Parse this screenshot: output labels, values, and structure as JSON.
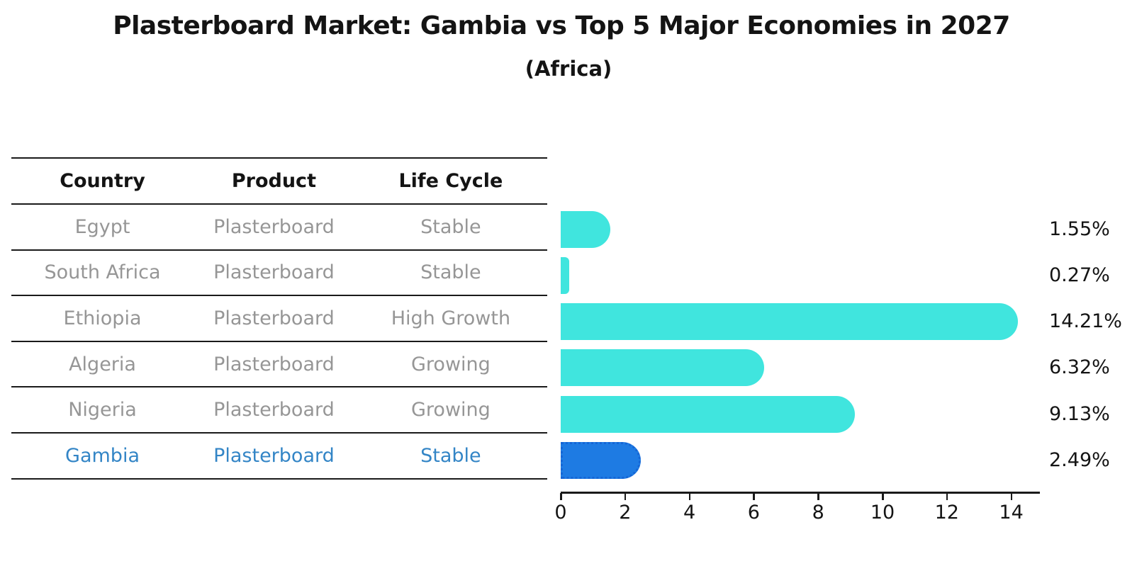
{
  "title": "Plasterboard Market: Gambia vs Top 5 Major Economies in 2027",
  "subtitle": "(Africa)",
  "table": {
    "headers": [
      "Country",
      "Product",
      "Life Cycle"
    ],
    "rows": [
      {
        "country": "Egypt",
        "product": "Plasterboard",
        "life_cycle": "Stable",
        "highlighted": false
      },
      {
        "country": "South Africa",
        "product": "Plasterboard",
        "life_cycle": "Stable",
        "highlighted": false
      },
      {
        "country": "Ethiopia",
        "product": "Plasterboard",
        "life_cycle": "High Growth",
        "highlighted": false
      },
      {
        "country": "Algeria",
        "product": "Plasterboard",
        "life_cycle": "Growing",
        "highlighted": false
      },
      {
        "country": "Nigeria",
        "product": "Plasterboard",
        "life_cycle": "Growing",
        "highlighted": false
      },
      {
        "country": "Gambia",
        "product": "Plasterboard",
        "life_cycle": "Stable",
        "highlighted": true
      }
    ]
  },
  "chart_data": {
    "type": "bar",
    "orientation": "horizontal",
    "title": "Plasterboard Market: Gambia vs Top 5 Major Economies in 2027",
    "subtitle": "(Africa)",
    "categories": [
      "Egypt",
      "South Africa",
      "Ethiopia",
      "Algeria",
      "Nigeria",
      "Gambia"
    ],
    "values": [
      1.55,
      0.27,
      14.21,
      6.32,
      9.13,
      2.49
    ],
    "value_labels": [
      "1.55%",
      "0.27%",
      "14.21%",
      "6.32%",
      "9.13%",
      "2.49%"
    ],
    "x_ticks": [
      0,
      2,
      4,
      6,
      8,
      10,
      12,
      14
    ],
    "xlim": [
      0,
      14.9
    ],
    "grid": false,
    "legend": false,
    "highlight_index": 5,
    "xlabel": "",
    "ylabel": ""
  },
  "colors": {
    "bar": "#40E5DE",
    "highlight_bar": "#1E7BE3",
    "highlight_bar_border": "#1566D6",
    "row_text": "#969696",
    "highlight_text": "#3385C6",
    "heading_text": "#141414",
    "line": "#1a1a1a"
  }
}
